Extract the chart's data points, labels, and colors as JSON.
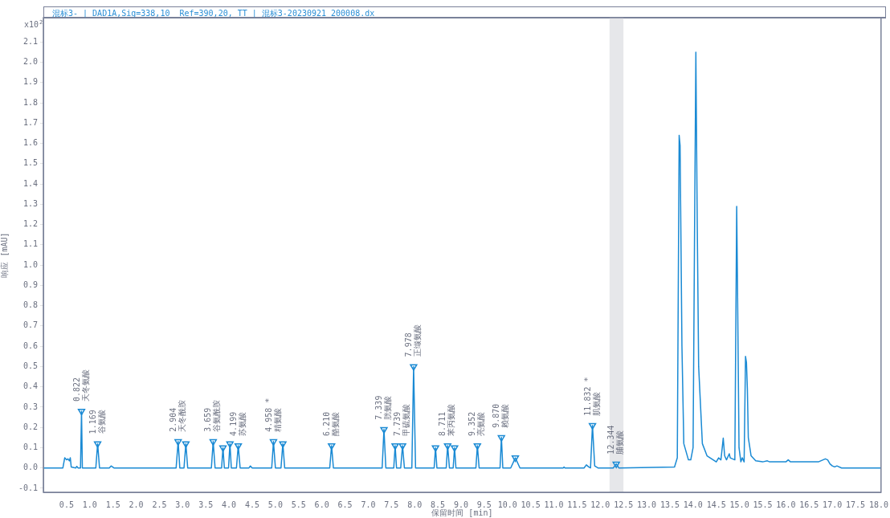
{
  "chart_data": {
    "type": "line",
    "title": "混标3- | DAD1A,Sig=338,10  Ref=390,20, TT | 混标3-20230921 200008.dx",
    "xlabel": "保留时间 [min]",
    "ylabel": "响应 [mAU]",
    "xlim": [
      0,
      18.05
    ],
    "ylim": [
      -0.12,
      2.22
    ],
    "xticks": [
      0.5,
      {
        "value": 1,
        "label": "1.0"
      },
      1.5,
      {
        "value": 2,
        "label": "2.0"
      },
      2.5,
      {
        "value": 3,
        "label": "3.0"
      },
      3.5,
      {
        "value": 4,
        "label": "4.0"
      },
      4.5,
      {
        "value": 5,
        "label": "5.0"
      },
      5.5,
      {
        "value": 6,
        "label": "6.0"
      },
      6.5,
      {
        "value": 7,
        "label": "7.0"
      },
      7.5,
      {
        "value": 8,
        "label": "8.0"
      },
      8.5,
      {
        "value": 9,
        "label": "9.0"
      },
      9.5,
      {
        "value": 10,
        "label": "10.0"
      },
      10.5,
      {
        "value": 11,
        "label": "11.0"
      },
      11.5,
      {
        "value": 12,
        "label": "12.0"
      },
      12.5,
      {
        "value": 13,
        "label": "13.0"
      },
      13.5,
      {
        "value": 14,
        "label": "14.0"
      },
      14.5,
      {
        "value": 15,
        "label": "15.0"
      },
      15.5,
      {
        "value": 16,
        "label": "16.0"
      },
      16.5,
      {
        "value": 17,
        "label": "17.0"
      },
      17.5,
      {
        "value": 18,
        "label": "18.0"
      }
    ],
    "yticks": [
      -0.1,
      {
        "value": 0,
        "label": "0.0"
      },
      0.1,
      0.2,
      0.3,
      0.4,
      0.5,
      0.6,
      0.7,
      0.8,
      0.9,
      {
        "value": 1,
        "label": "1.0"
      },
      1.1,
      1.2,
      1.3,
      1.4,
      1.5,
      1.6,
      1.7,
      1.8,
      1.9,
      {
        "value": 2,
        "label": "2.0"
      },
      2.1
    ],
    "grid": false,
    "legend": false,
    "bands": [
      {
        "axis": "x",
        "from": 12.2,
        "to": 12.5,
        "color": "#e6e7ea"
      }
    ],
    "annotations": [
      "x10$^{2}$",
      {
        "text": "0.822\n天冬氨酸",
        "x": 0.822,
        "y": 0.28
      },
      {
        "text": "1.169\n谷氨酸",
        "x": 1.169,
        "y": 0.12
      },
      {
        "text": "2.904\n天冬酰胺",
        "x": 2.904,
        "y": 0.13
      },
      {
        "text": "3.659\n谷氨酰胺",
        "x": 3.659,
        "y": 0.13
      },
      {
        "text": "4.199\n苏氨酸",
        "x": 4.199,
        "y": 0.11
      },
      {
        "text": "4.958 *\n精氨酸",
        "x": 4.958,
        "y": 0.13
      },
      {
        "text": "6.210\n酪氨酸",
        "x": 6.21,
        "y": 0.11
      },
      {
        "text": "7.339\n胱氨酸",
        "x": 7.339,
        "y": 0.19
      },
      {
        "text": "7.739\n甲硫氨酸",
        "x": 7.739,
        "y": 0.11
      },
      {
        "text": "7.978\n正缬氨酸",
        "x": 7.978,
        "y": 0.5
      },
      {
        "text": "8.711\n苯丙氨酸",
        "x": 8.711,
        "y": 0.11
      },
      {
        "text": "9.352\n亮氨酸",
        "x": 9.352,
        "y": 0.11
      },
      {
        "text": "9.870\n赖氨酸",
        "x": 9.87,
        "y": 0.15
      },
      {
        "text": "11.832 *\n肌氨酸",
        "x": 11.832,
        "y": 0.21
      },
      {
        "text": "12.344\n脯氨酸",
        "x": 12.344,
        "y": 0.02
      }
    ],
    "series": [
      {
        "color": "#1a8ad4",
        "x": [
          0,
          0.42,
          0.46,
          0.5,
          0.53,
          0.56,
          0.58,
          0.6,
          0.7,
          0.72,
          0.75,
          0.8,
          0.822,
          0.84,
          0.86,
          1.13,
          1.169,
          1.21,
          1.42,
          1.46,
          1.52,
          2.86,
          2.904,
          2.94,
          3.03,
          3.07,
          3.11,
          3.62,
          3.659,
          3.7,
          3.84,
          3.87,
          3.9,
          3.99,
          4.02,
          4.05,
          4.16,
          4.199,
          4.24,
          4.43,
          4.46,
          4.5,
          4.92,
          4.958,
          5.0,
          5.12,
          5.16,
          5.2,
          6.17,
          6.21,
          6.25,
          7.3,
          7.339,
          7.38,
          7.55,
          7.58,
          7.61,
          7.7,
          7.739,
          7.78,
          7.94,
          7.978,
          8.02,
          8.42,
          8.45,
          8.48,
          8.68,
          8.711,
          8.75,
          8.83,
          8.86,
          8.89,
          9.32,
          9.352,
          9.39,
          9.84,
          9.87,
          9.9,
          10.07,
          10.17,
          10.27,
          11.2,
          11.22,
          11.24,
          11.65,
          11.7,
          11.75,
          11.79,
          11.832,
          11.88,
          11.95,
          12.28,
          12.344,
          12.4,
          13.6,
          13.66,
          13.7,
          13.72,
          13.76,
          13.8,
          13.9,
          13.95,
          14.0,
          14.03,
          14.06,
          14.09,
          14.12,
          14.2,
          14.3,
          14.5,
          14.55,
          14.6,
          14.65,
          14.68,
          14.72,
          14.78,
          14.8,
          14.9,
          14.94,
          14.96,
          14.99,
          15.03,
          15.06,
          15.1,
          15.13,
          15.15,
          15.17,
          15.19,
          15.25,
          15.35,
          15.5,
          15.6,
          15.65,
          16.0,
          16.05,
          16.1,
          16.7,
          16.85,
          16.9,
          16.95,
          17.0,
          17.05,
          17.1,
          17.2,
          18.05
        ],
        "values": [
          0,
          0,
          0.05,
          0.04,
          0.045,
          0.035,
          0.05,
          0.005,
          0,
          0.008,
          0,
          0,
          0.28,
          0,
          0,
          0,
          0.12,
          0,
          0,
          0.01,
          0,
          0,
          0.13,
          0,
          0,
          0.12,
          0,
          0,
          0.13,
          0,
          0,
          0.1,
          0,
          0,
          0.12,
          0,
          0,
          0.11,
          0,
          0,
          0.01,
          0,
          0,
          0.13,
          0,
          0,
          0.12,
          0,
          0,
          0.11,
          0,
          0,
          0.19,
          0,
          0,
          0.11,
          0,
          0,
          0.11,
          0,
          0,
          0.5,
          0,
          0,
          0.1,
          0,
          0,
          0.11,
          0,
          0,
          0.1,
          0,
          0,
          0.11,
          0,
          0,
          0.15,
          0,
          0,
          0.05,
          0,
          0,
          0.005,
          0,
          0,
          0.015,
          0.005,
          0,
          0.21,
          0.01,
          0,
          0,
          0.02,
          0,
          0.005,
          0.05,
          1.64,
          1.59,
          0.6,
          0.12,
          0.04,
          0.04,
          0.1,
          1.1,
          2.05,
          1.2,
          0.5,
          0.12,
          0.06,
          0.03,
          0.05,
          0.04,
          0.147,
          0.06,
          0.04,
          0.07,
          0.05,
          0.04,
          1.29,
          0.83,
          0.1,
          0.03,
          0.05,
          0.03,
          0.55,
          0.52,
          0.39,
          0.15,
          0.06,
          0.035,
          0.03,
          0.035,
          0.03,
          0.03,
          0.04,
          0.03,
          0.03,
          0.045,
          0.04,
          0.02,
          0.01,
          0.005,
          0.01,
          0,
          0
        ]
      },
      {
        "type": "scatter",
        "marker": "triangle",
        "color": "#1a8ad4",
        "x": [
          0.822,
          1.169,
          2.904,
          3.07,
          3.659,
          3.87,
          4.02,
          4.199,
          4.958,
          5.16,
          6.21,
          7.339,
          7.58,
          7.739,
          7.978,
          8.45,
          8.711,
          8.86,
          9.352,
          9.87,
          10.17,
          11.832,
          12.344
        ],
        "values": [
          0.28,
          0.12,
          0.13,
          0.12,
          0.13,
          0.1,
          0.12,
          0.11,
          0.13,
          0.12,
          0.11,
          0.19,
          0.11,
          0.11,
          0.5,
          0.1,
          0.11,
          0.1,
          0.11,
          0.15,
          0.05,
          0.21,
          0.02
        ]
      }
    ]
  }
}
